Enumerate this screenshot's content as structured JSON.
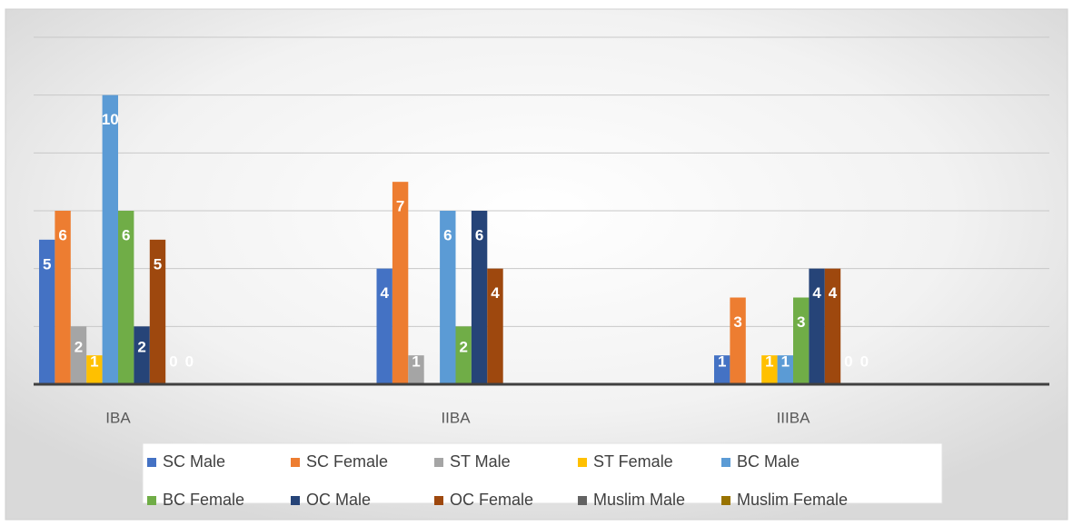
{
  "chart_data": {
    "type": "bar",
    "categories": [
      "IBA",
      "IIBA",
      "IIIBA"
    ],
    "series": [
      {
        "name": "SC Male",
        "color": "#4472c4",
        "values": [
          5,
          4,
          1
        ]
      },
      {
        "name": "SC Female",
        "color": "#ed7d31",
        "values": [
          6,
          7,
          3
        ]
      },
      {
        "name": "ST Male",
        "color": "#a5a5a5",
        "values": [
          2,
          1,
          null
        ]
      },
      {
        "name": "ST Female",
        "color": "#ffc000",
        "values": [
          1,
          null,
          1
        ]
      },
      {
        "name": "BC Male",
        "color": "#5b9bd5",
        "values": [
          10,
          6,
          1
        ]
      },
      {
        "name": "BC Female",
        "color": "#70ad47",
        "values": [
          6,
          2,
          3
        ]
      },
      {
        "name": "OC Male",
        "color": "#264478",
        "values": [
          2,
          6,
          4
        ]
      },
      {
        "name": "OC Female",
        "color": "#9e480e",
        "values": [
          5,
          4,
          4
        ]
      },
      {
        "name": "Muslim Male",
        "color": "#636363",
        "values": [
          0,
          null,
          0
        ]
      },
      {
        "name": "Muslim Female",
        "color": "#997300",
        "values": [
          0,
          null,
          0
        ]
      }
    ],
    "ylim": [
      0,
      12
    ],
    "yticks": [
      2,
      4,
      6,
      8,
      10,
      12
    ],
    "grid": true,
    "legend": "bottom"
  }
}
